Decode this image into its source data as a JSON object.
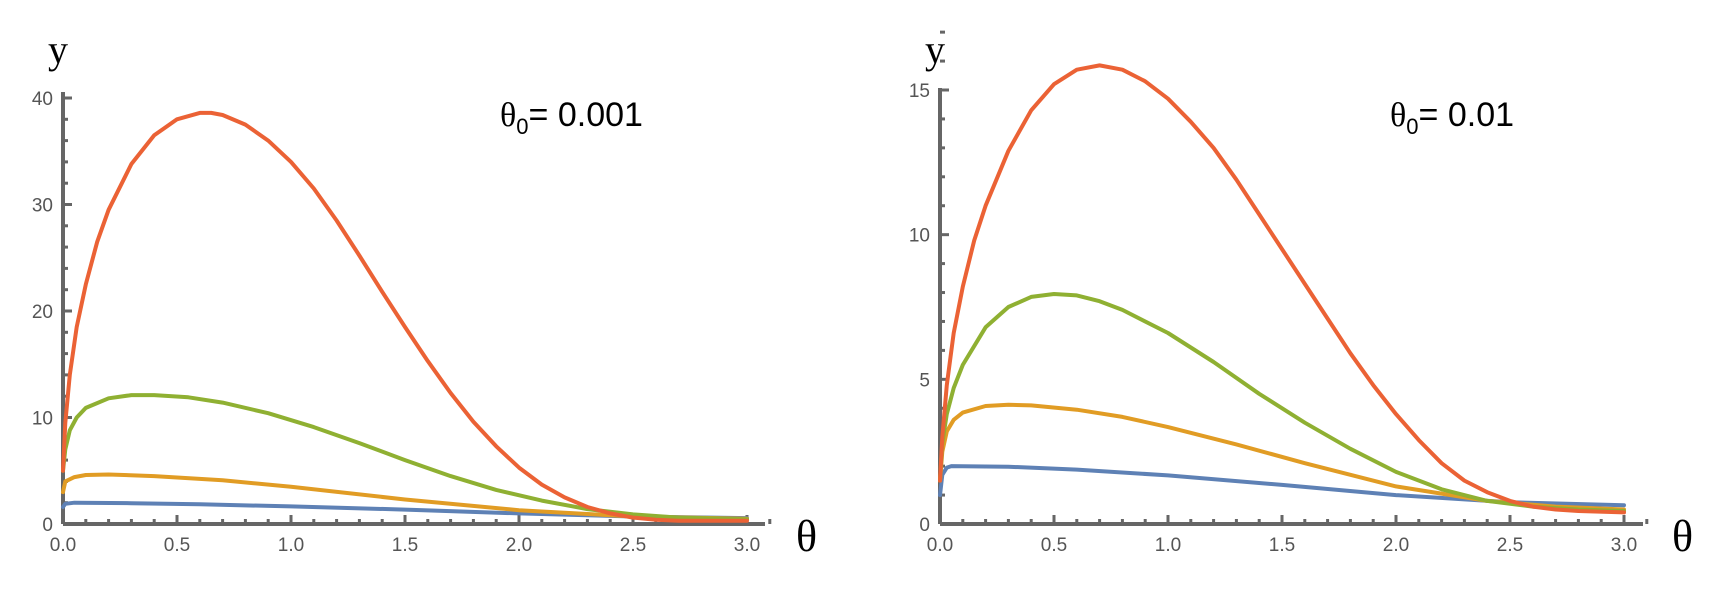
{
  "chart_data": [
    {
      "type": "line",
      "annotation": {
        "symbol": "θ",
        "subscript": "0",
        "text": "= 0.001"
      },
      "xlabel": "θ",
      "ylabel": "y",
      "xlim": [
        0,
        3.1
      ],
      "ylim": [
        0,
        41
      ],
      "xticks": [
        "0.0",
        "0.5",
        "1.0",
        "1.5",
        "2.0",
        "2.5",
        "3.0"
      ],
      "yticks": [
        "0",
        "10",
        "20",
        "30",
        "40"
      ],
      "grid": false,
      "colors": [
        "#5e81b5",
        "#e19c24",
        "#8fb032",
        "#eb6235"
      ],
      "series": [
        {
          "x": [
            0,
            0.01,
            0.05,
            0.3,
            0.6,
            1.0,
            1.5,
            2.0,
            2.5,
            3.0
          ],
          "y": [
            1.6,
            1.9,
            2.0,
            1.95,
            1.85,
            1.65,
            1.35,
            1.0,
            0.7,
            0.55
          ]
        },
        {
          "x": [
            0,
            0.01,
            0.05,
            0.1,
            0.2,
            0.4,
            0.7,
            1.0,
            1.5,
            2.0,
            2.5,
            3.0
          ],
          "y": [
            3.0,
            4.0,
            4.4,
            4.6,
            4.65,
            4.5,
            4.1,
            3.5,
            2.3,
            1.3,
            0.7,
            0.5
          ]
        },
        {
          "x": [
            0,
            0.01,
            0.03,
            0.06,
            0.1,
            0.2,
            0.3,
            0.4,
            0.55,
            0.7,
            0.9,
            1.1,
            1.3,
            1.5,
            1.7,
            1.9,
            2.1,
            2.3,
            2.5,
            2.7,
            3.0
          ],
          "y": [
            5.0,
            7.0,
            8.8,
            10.0,
            10.9,
            11.8,
            12.1,
            12.1,
            11.9,
            11.4,
            10.4,
            9.1,
            7.6,
            6.0,
            4.5,
            3.2,
            2.2,
            1.4,
            0.9,
            0.6,
            0.45
          ]
        },
        {
          "x": [
            0,
            0.01,
            0.03,
            0.06,
            0.1,
            0.15,
            0.2,
            0.3,
            0.4,
            0.5,
            0.6,
            0.65,
            0.7,
            0.8,
            0.9,
            1.0,
            1.1,
            1.2,
            1.3,
            1.4,
            1.5,
            1.6,
            1.7,
            1.8,
            1.9,
            2.0,
            2.1,
            2.2,
            2.3,
            2.4,
            2.5,
            2.6,
            2.7,
            2.8,
            3.0
          ],
          "y": [
            5.0,
            9.5,
            14.0,
            18.5,
            22.5,
            26.5,
            29.5,
            33.8,
            36.5,
            38.0,
            38.6,
            38.6,
            38.4,
            37.5,
            36.0,
            34.0,
            31.5,
            28.5,
            25.2,
            21.8,
            18.5,
            15.3,
            12.3,
            9.6,
            7.3,
            5.3,
            3.7,
            2.5,
            1.6,
            1.0,
            0.6,
            0.4,
            0.3,
            0.3,
            0.3
          ]
        }
      ]
    },
    {
      "type": "line",
      "annotation": {
        "symbol": "θ",
        "subscript": "0",
        "text": "= 0.01"
      },
      "xlabel": "θ",
      "ylabel": "y",
      "xlim": [
        0,
        3.1
      ],
      "ylim": [
        0,
        17
      ],
      "xticks": [
        "0.0",
        "0.5",
        "1.0",
        "1.5",
        "2.0",
        "2.5",
        "3.0"
      ],
      "yticks": [
        "0",
        "5",
        "10",
        "15"
      ],
      "grid": false,
      "colors": [
        "#5e81b5",
        "#e19c24",
        "#8fb032",
        "#eb6235"
      ],
      "series": [
        {
          "x": [
            0,
            0.01,
            0.03,
            0.05,
            0.3,
            0.6,
            1.0,
            1.5,
            2.0,
            2.5,
            3.0
          ],
          "y": [
            1.0,
            1.7,
            1.95,
            2.0,
            1.98,
            1.88,
            1.68,
            1.35,
            1.0,
            0.75,
            0.65
          ]
        },
        {
          "x": [
            0,
            0.01,
            0.03,
            0.06,
            0.1,
            0.2,
            0.3,
            0.4,
            0.6,
            0.8,
            1.0,
            1.3,
            1.6,
            2.0,
            2.4,
            2.7,
            3.0
          ],
          "y": [
            1.5,
            2.5,
            3.2,
            3.6,
            3.85,
            4.08,
            4.12,
            4.1,
            3.95,
            3.7,
            3.35,
            2.75,
            2.1,
            1.3,
            0.8,
            0.6,
            0.5
          ]
        },
        {
          "x": [
            0,
            0.01,
            0.03,
            0.06,
            0.1,
            0.2,
            0.3,
            0.4,
            0.5,
            0.6,
            0.7,
            0.8,
            1.0,
            1.2,
            1.4,
            1.6,
            1.8,
            2.0,
            2.2,
            2.4,
            2.6,
            2.8,
            3.0
          ],
          "y": [
            1.5,
            2.8,
            3.8,
            4.7,
            5.5,
            6.8,
            7.5,
            7.85,
            7.95,
            7.9,
            7.7,
            7.4,
            6.6,
            5.6,
            4.5,
            3.5,
            2.6,
            1.8,
            1.2,
            0.8,
            0.6,
            0.5,
            0.45
          ]
        },
        {
          "x": [
            0,
            0.01,
            0.03,
            0.06,
            0.1,
            0.15,
            0.2,
            0.3,
            0.4,
            0.5,
            0.6,
            0.7,
            0.8,
            0.9,
            1.0,
            1.1,
            1.2,
            1.3,
            1.4,
            1.5,
            1.6,
            1.7,
            1.8,
            1.9,
            2.0,
            2.1,
            2.2,
            2.3,
            2.4,
            2.5,
            2.6,
            2.7,
            2.8,
            3.0
          ],
          "y": [
            1.5,
            3.0,
            4.8,
            6.6,
            8.2,
            9.8,
            11.0,
            12.9,
            14.3,
            15.2,
            15.7,
            15.85,
            15.7,
            15.3,
            14.7,
            13.9,
            13.0,
            11.9,
            10.7,
            9.5,
            8.3,
            7.1,
            5.9,
            4.8,
            3.8,
            2.9,
            2.1,
            1.5,
            1.1,
            0.8,
            0.6,
            0.5,
            0.45,
            0.4
          ]
        }
      ]
    }
  ]
}
